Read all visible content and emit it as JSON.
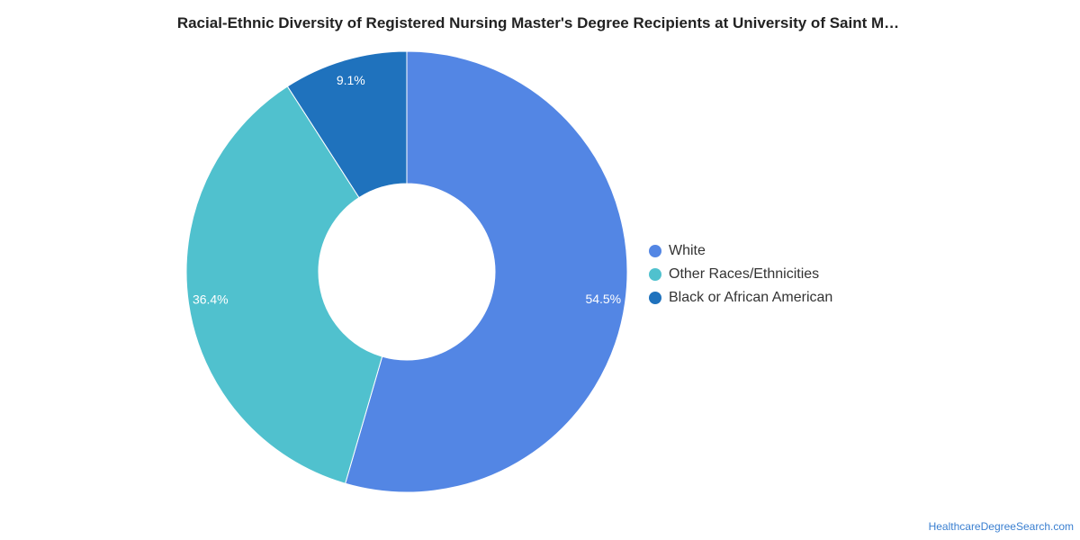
{
  "chart_data": {
    "type": "pie",
    "title": "Racial-Ethnic Diversity of Registered Nursing Master's Degree Recipients at University of Saint M…",
    "series": [
      {
        "name": "White",
        "value": 54.5,
        "label": "54.5%",
        "color": "#5386e4"
      },
      {
        "name": "Other Races/Ethnicities",
        "value": 36.4,
        "label": "36.4%",
        "color": "#50c1ce"
      },
      {
        "name": "Black or African American",
        "value": 9.1,
        "label": "9.1%",
        "color": "#1f72bd"
      }
    ],
    "donut": true,
    "legend_position": "right"
  },
  "footer": {
    "source": "HealthcareDegreeSearch.com"
  }
}
